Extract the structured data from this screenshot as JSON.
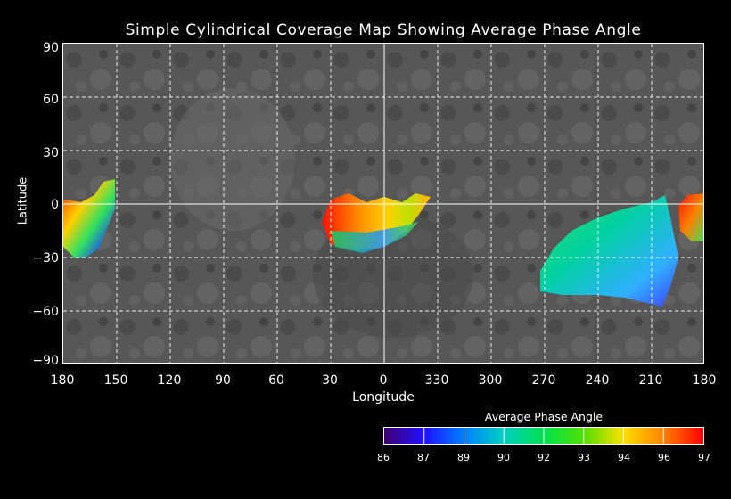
{
  "map": {
    "title": "Simple Cylindrical Coverage Map Showing Average Phase Angle",
    "x_label": "Longitude",
    "y_label": "Latitude",
    "x_ticks": [
      "180",
      "150",
      "120",
      "90",
      "60",
      "30",
      "0",
      "330",
      "300",
      "270",
      "240",
      "210",
      "180"
    ],
    "y_ticks": [
      "90",
      "60",
      "30",
      "0",
      "−30",
      "−60",
      "−90"
    ],
    "grid": true,
    "basemap_color": "#5a5a5a",
    "coverage_regions": [
      {
        "name": "coverage-region-west-edge",
        "lon_range": [
          180,
          149
        ],
        "lat_range": [
          -30,
          16
        ],
        "values": "mostly 86-96"
      },
      {
        "name": "coverage-region-center",
        "lon_range": [
          29,
          322
        ],
        "lat_range": [
          -25,
          6
        ],
        "values": "mostly 90-97"
      },
      {
        "name": "coverage-region-east",
        "lon_range": [
          276,
          199
        ],
        "lat_range": [
          -58,
          6
        ],
        "values": "mostly 88-93"
      },
      {
        "name": "coverage-region-east-edge",
        "lon_range": [
          200,
          180
        ],
        "lat_range": [
          -20,
          7
        ],
        "values": "mostly 94-97"
      }
    ]
  },
  "colorbar": {
    "title": "Average Phase Angle",
    "ticks": [
      "86",
      "87",
      "89",
      "90",
      "92",
      "93",
      "94",
      "96",
      "97"
    ],
    "colors": [
      "#6a0080",
      "#2020ff",
      "#00a0ff",
      "#00d890",
      "#20e020",
      "#a0e000",
      "#ffd000",
      "#ff6000",
      "#ff0000"
    ]
  }
}
